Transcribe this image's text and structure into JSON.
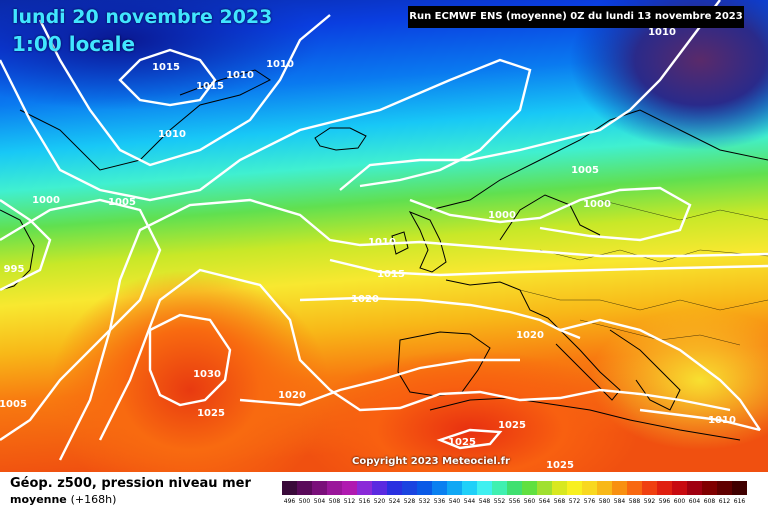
{
  "header": {
    "date": "lundi 20 novembre 2023",
    "time": "1:00 locale",
    "run": "Run ECMWF ENS (moyenne) 0Z du lundi 13 novembre 2023"
  },
  "copyright": "Copyright 2023 Meteociel.fr",
  "footer": {
    "title": "Géop. z500, pression niveau mer",
    "subtitle": "moyenne",
    "lead": "(+168h)"
  },
  "legend": {
    "labels": [
      "496",
      "500",
      "504",
      "508",
      "512",
      "516",
      "520",
      "524",
      "528",
      "532",
      "536",
      "540",
      "544",
      "548",
      "552",
      "556",
      "560",
      "564",
      "568",
      "572",
      "576",
      "580",
      "584",
      "588",
      "592",
      "596",
      "600",
      "604",
      "608",
      "612",
      "616"
    ],
    "colors": [
      "#3a0a3a",
      "#5a0a5a",
      "#7a0f7a",
      "#9a169a",
      "#b01ab0",
      "#8a2ad8",
      "#5a2ae0",
      "#2a30e0",
      "#1a44e0",
      "#0a5ae6",
      "#0a80f0",
      "#10a8f4",
      "#20d0f8",
      "#40f0f0",
      "#40f0b0",
      "#40e070",
      "#60e040",
      "#a0e030",
      "#d8e820",
      "#f8f020",
      "#f8d820",
      "#f8b818",
      "#f89010",
      "#f86810",
      "#f04010",
      "#e02010",
      "#c80a10",
      "#a00010",
      "#800000",
      "#600000",
      "#400000"
    ]
  },
  "isobars": [
    {
      "label": "1015"
    },
    {
      "label": "1010"
    },
    {
      "label": "1015"
    },
    {
      "label": "1010"
    },
    {
      "label": "1010"
    },
    {
      "label": "1000"
    },
    {
      "label": "1005"
    },
    {
      "label": "995"
    },
    {
      "label": "1005"
    },
    {
      "label": "1000"
    },
    {
      "label": "1000"
    },
    {
      "label": "1005"
    },
    {
      "label": "1010"
    },
    {
      "label": "1015"
    },
    {
      "label": "1020"
    },
    {
      "label": "1020"
    },
    {
      "label": "1030"
    },
    {
      "label": "1020"
    },
    {
      "label": "1025"
    },
    {
      "label": "1025"
    },
    {
      "label": "1025"
    },
    {
      "label": "1025"
    },
    {
      "label": "1010"
    },
    {
      "label": "1010"
    }
  ],
  "colors": {
    "isobar": "#ffffff",
    "coast": "#000000"
  }
}
